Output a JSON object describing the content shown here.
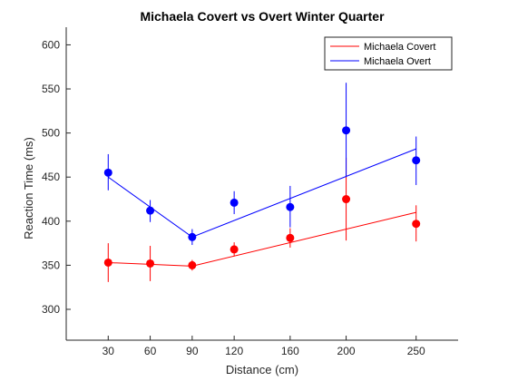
{
  "chart_data": {
    "type": "line",
    "title": "Michaela Covert vs Overt Winter Quarter",
    "xlabel": "Distance (cm)",
    "ylabel": "Reaction Time (ms)",
    "x": [
      30,
      60,
      90,
      120,
      160,
      200,
      250
    ],
    "xlim": [
      0,
      280
    ],
    "ylim": [
      265,
      620
    ],
    "xticks": [
      30,
      60,
      90,
      120,
      160,
      200,
      250
    ],
    "yticks": [
      300,
      350,
      400,
      450,
      500,
      550,
      600
    ],
    "legend_position": "top-right",
    "grid": false,
    "series": [
      {
        "name": "Michaela Covert",
        "color": "#ff0000",
        "means": [
          353,
          352,
          350,
          368,
          381,
          425,
          397
        ],
        "error_low": [
          331,
          332,
          344,
          360,
          370,
          378,
          377
        ],
        "error_high": [
          375,
          372,
          356,
          376,
          392,
          472,
          418
        ],
        "fit_x": [
          30,
          60,
          90,
          250
        ],
        "fit_y": [
          353,
          351,
          349,
          410
        ]
      },
      {
        "name": "Michaela Overt",
        "color": "#0000ff",
        "means": [
          455,
          412,
          382,
          421,
          416,
          503,
          469
        ],
        "error_low": [
          435,
          399,
          373,
          408,
          393,
          450,
          441
        ],
        "error_high": [
          476,
          424,
          391,
          434,
          440,
          557,
          496
        ],
        "fit_x": [
          30,
          90,
          250
        ],
        "fit_y": [
          450,
          382,
          482
        ]
      }
    ]
  }
}
